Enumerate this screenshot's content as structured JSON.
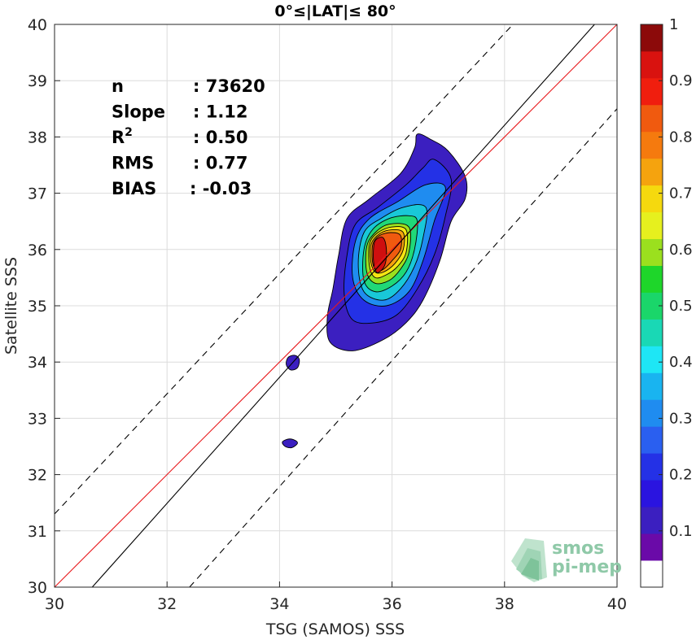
{
  "chart_data": {
    "type": "contour",
    "title": "0°≤|LAT|≤ 80°",
    "xlabel": "TSG (SAMOS) SSS",
    "ylabel": "Satellite SSS",
    "xlim": [
      30,
      40
    ],
    "ylim": [
      30,
      40
    ],
    "xticks": [
      "30",
      "32",
      "34",
      "36",
      "38",
      "40"
    ],
    "yticks": [
      "30",
      "31",
      "32",
      "33",
      "34",
      "35",
      "36",
      "37",
      "38",
      "39",
      "40"
    ],
    "grid": true,
    "stats": [
      {
        "label": "n",
        "value": ": 73620"
      },
      {
        "label": "Slope",
        "value": ": 1.12"
      },
      {
        "label": "R",
        "sup": "2",
        "value": ": 0.50"
      },
      {
        "label": "RMS",
        "value": ": 0.77"
      },
      {
        "label": "BIAS",
        "value": ": -0.03"
      }
    ],
    "lines": [
      {
        "kind": "identity",
        "color": "#e8191c",
        "style": "solid",
        "points": [
          [
            30,
            30
          ],
          [
            40,
            40
          ]
        ]
      },
      {
        "kind": "regression",
        "color": "#000000",
        "style": "solid",
        "points": [
          [
            30.67,
            30
          ],
          [
            39.6,
            40
          ]
        ]
      },
      {
        "kind": "upper-bound",
        "color": "#000000",
        "style": "dashed",
        "points": [
          [
            30,
            31.3
          ],
          [
            38.15,
            40
          ]
        ]
      },
      {
        "kind": "lower-bound",
        "color": "#000000",
        "style": "dashed",
        "points": [
          [
            32.4,
            30
          ],
          [
            40,
            38.5
          ]
        ]
      }
    ],
    "contour_levels": [
      {
        "level": 0.05,
        "color": "#3b1fc0",
        "center": [
          35.8,
          35.95
        ],
        "points": [
          [
            36.45,
            38.05
          ],
          [
            36.7,
            37.95
          ],
          [
            37.0,
            37.75
          ],
          [
            37.3,
            37.3
          ],
          [
            37.3,
            36.9
          ],
          [
            37.05,
            36.5
          ],
          [
            36.85,
            35.8
          ],
          [
            36.55,
            35.1
          ],
          [
            36.25,
            34.7
          ],
          [
            35.85,
            34.4
          ],
          [
            35.3,
            34.2
          ],
          [
            34.9,
            34.35
          ],
          [
            34.85,
            34.8
          ],
          [
            34.95,
            35.3
          ],
          [
            35.05,
            35.9
          ],
          [
            35.2,
            36.55
          ],
          [
            35.6,
            36.9
          ],
          [
            36.15,
            37.35
          ],
          [
            36.4,
            37.8
          ]
        ]
      },
      {
        "level": 0.15,
        "color": "#2431e6",
        "center": [
          35.8,
          35.95
        ],
        "points": [
          [
            36.75,
            37.6
          ],
          [
            37.05,
            37.25
          ],
          [
            36.95,
            36.6
          ],
          [
            36.75,
            35.9
          ],
          [
            36.45,
            35.3
          ],
          [
            36.1,
            34.85
          ],
          [
            35.7,
            34.7
          ],
          [
            35.3,
            34.75
          ],
          [
            35.15,
            35.2
          ],
          [
            35.2,
            35.9
          ],
          [
            35.35,
            36.45
          ],
          [
            35.75,
            36.75
          ],
          [
            36.25,
            37.15
          ],
          [
            36.55,
            37.45
          ]
        ]
      },
      {
        "level": 0.25,
        "color": "#1f8cf0",
        "center": [
          35.85,
          35.95
        ],
        "points": [
          [
            36.95,
            37.1
          ],
          [
            36.75,
            36.5
          ],
          [
            36.55,
            35.8
          ],
          [
            36.3,
            35.25
          ],
          [
            35.9,
            35.0
          ],
          [
            35.5,
            35.1
          ],
          [
            35.3,
            35.5
          ],
          [
            35.35,
            36.15
          ],
          [
            35.6,
            36.55
          ],
          [
            36.1,
            36.85
          ],
          [
            36.6,
            37.15
          ]
        ]
      },
      {
        "level": 0.35,
        "color": "#19c8d8",
        "center": [
          35.85,
          35.95
        ],
        "points": [
          [
            36.6,
            36.75
          ],
          [
            36.55,
            36.2
          ],
          [
            36.4,
            35.7
          ],
          [
            36.15,
            35.3
          ],
          [
            35.85,
            35.1
          ],
          [
            35.5,
            35.25
          ],
          [
            35.4,
            35.75
          ],
          [
            35.5,
            36.3
          ],
          [
            35.8,
            36.55
          ],
          [
            36.2,
            36.75
          ]
        ]
      },
      {
        "level": 0.45,
        "color": "#20d878",
        "center": [
          35.85,
          35.95
        ],
        "points": [
          [
            36.45,
            36.5
          ],
          [
            36.4,
            36.0
          ],
          [
            36.25,
            35.6
          ],
          [
            36.0,
            35.35
          ],
          [
            35.7,
            35.25
          ],
          [
            35.5,
            35.45
          ],
          [
            35.5,
            36.0
          ],
          [
            35.65,
            36.35
          ],
          [
            35.95,
            36.55
          ],
          [
            36.3,
            36.6
          ]
        ]
      },
      {
        "level": 0.55,
        "color": "#9be01e",
        "center": [
          35.85,
          35.95
        ],
        "points": [
          [
            36.3,
            36.4
          ],
          [
            36.3,
            35.95
          ],
          [
            36.15,
            35.65
          ],
          [
            35.95,
            35.45
          ],
          [
            35.7,
            35.4
          ],
          [
            35.55,
            35.6
          ],
          [
            35.55,
            36.05
          ],
          [
            35.7,
            36.3
          ],
          [
            35.95,
            36.45
          ]
        ]
      },
      {
        "level": 0.65,
        "color": "#f5e513",
        "center": [
          35.85,
          35.95
        ],
        "points": [
          [
            36.25,
            36.35
          ],
          [
            36.25,
            35.95
          ],
          [
            36.1,
            35.7
          ],
          [
            35.9,
            35.55
          ],
          [
            35.7,
            35.5
          ],
          [
            35.6,
            35.7
          ],
          [
            35.6,
            36.1
          ],
          [
            35.75,
            36.3
          ],
          [
            36.0,
            36.4
          ]
        ]
      },
      {
        "level": 0.75,
        "color": "#f5a30e",
        "center": [
          35.85,
          35.95
        ],
        "points": [
          [
            36.2,
            36.3
          ],
          [
            36.2,
            36.0
          ],
          [
            36.05,
            35.75
          ],
          [
            35.85,
            35.6
          ],
          [
            35.7,
            35.6
          ],
          [
            35.62,
            35.8
          ],
          [
            35.63,
            36.1
          ],
          [
            35.78,
            36.28
          ],
          [
            36.0,
            36.35
          ]
        ]
      },
      {
        "level": 0.85,
        "color": "#f05a0f",
        "center": [
          35.8,
          35.95
        ],
        "points": [
          [
            36.15,
            36.25
          ],
          [
            36.15,
            36.0
          ],
          [
            36.0,
            35.8
          ],
          [
            35.85,
            35.65
          ],
          [
            35.72,
            35.62
          ],
          [
            35.65,
            35.8
          ],
          [
            35.66,
            36.1
          ],
          [
            35.78,
            36.25
          ],
          [
            35.98,
            36.3
          ]
        ]
      },
      {
        "level": 0.95,
        "color": "#cf0f0f",
        "center": [
          35.75,
          35.9
        ],
        "points": [
          [
            35.85,
            36.2
          ],
          [
            35.9,
            36.0
          ],
          [
            35.88,
            35.75
          ],
          [
            35.8,
            35.62
          ],
          [
            35.72,
            35.6
          ],
          [
            35.67,
            35.8
          ],
          [
            35.68,
            36.1
          ],
          [
            35.75,
            36.2
          ]
        ]
      },
      {
        "level": 0.05,
        "color": "#3b1fc0",
        "center": [
          34.22,
          33.98
        ],
        "points": [
          [
            34.35,
            34.05
          ],
          [
            34.32,
            33.9
          ],
          [
            34.2,
            33.86
          ],
          [
            34.12,
            33.95
          ],
          [
            34.15,
            34.08
          ],
          [
            34.27,
            34.12
          ]
        ]
      },
      {
        "level": 0.05,
        "color": "#3b1fc0",
        "center": [
          34.17,
          32.55
        ],
        "points": [
          [
            34.32,
            32.56
          ],
          [
            34.22,
            32.48
          ],
          [
            34.1,
            32.5
          ],
          [
            34.05,
            32.58
          ],
          [
            34.15,
            32.63
          ],
          [
            34.25,
            32.62
          ]
        ]
      }
    ],
    "colorbar": {
      "range": [
        0,
        1
      ],
      "labels": [
        "0.1",
        "0.2",
        "0.3",
        "0.4",
        "0.5",
        "0.6",
        "0.7",
        "0.8",
        "0.9",
        "1"
      ],
      "colors": [
        "#ffffff",
        "#6a0aa8",
        "#3b1fc0",
        "#2a14e0",
        "#2431e6",
        "#2a5ff0",
        "#1f8cf0",
        "#19b4f0",
        "#1ee6f5",
        "#19d8b5",
        "#1ad66a",
        "#1ed62a",
        "#9be01e",
        "#e6f01e",
        "#f5d90e",
        "#f5a30e",
        "#f57a0e",
        "#f05a0f",
        "#f01e0e",
        "#d9120f",
        "#8c0a0a"
      ]
    }
  },
  "logo": {
    "line1": "smos",
    "line2": "pi-mep"
  }
}
